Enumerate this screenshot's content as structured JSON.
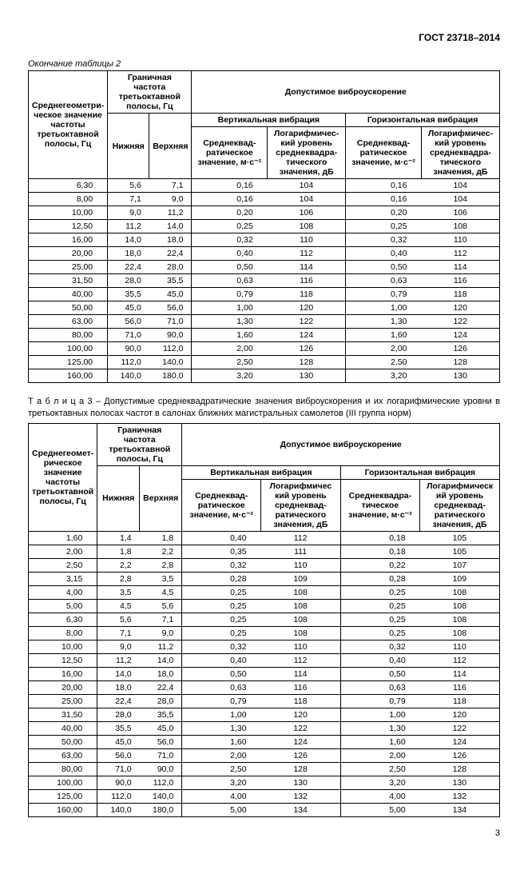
{
  "doc_header": "ГОСТ 23718–2014",
  "table2": {
    "caption": "Окончание таблицы 2",
    "headers": {
      "col_freq": "Среднегеометри-\nческое значение частоты третьоктавной полосы, Гц",
      "col_bound": "Граничная частота третьоктавной полосы, Гц",
      "col_lower": "Нижняя",
      "col_upper": "Верхняя",
      "col_accel": "Допустимое виброускорение",
      "col_vert": "Вертикальная вибрация",
      "col_horiz": "Горизонтальная вибрация",
      "col_rms": "Среднеквад-\nратическое значение, м·с⁻²",
      "col_log": "Логарифмичес-\nкий уровень среднеквадра-\nтического значения, дБ"
    },
    "rows": [
      {
        "f": "6,30",
        "lo": "5,6",
        "hi": "7,1",
        "v_rms": "0,16",
        "v_db": "104",
        "h_rms": "0,16",
        "h_db": "104"
      },
      {
        "f": "8,00",
        "lo": "7,1",
        "hi": "9,0",
        "v_rms": "0,16",
        "v_db": "104",
        "h_rms": "0,16",
        "h_db": "104"
      },
      {
        "f": "10,00",
        "lo": "9,0",
        "hi": "11,2",
        "v_rms": "0,20",
        "v_db": "106",
        "h_rms": "0,20",
        "h_db": "106"
      },
      {
        "f": "12,50",
        "lo": "11,2",
        "hi": "14,0",
        "v_rms": "0,25",
        "v_db": "108",
        "h_rms": "0,25",
        "h_db": "108"
      },
      {
        "f": "16,00",
        "lo": "14,0",
        "hi": "18,0",
        "v_rms": "0,32",
        "v_db": "110",
        "h_rms": "0,32",
        "h_db": "110"
      },
      {
        "f": "20,00",
        "lo": "18,0",
        "hi": "22,4",
        "v_rms": "0,40",
        "v_db": "112",
        "h_rms": "0,40",
        "h_db": "112"
      },
      {
        "f": "25,00",
        "lo": "22,4",
        "hi": "28,0",
        "v_rms": "0,50",
        "v_db": "114",
        "h_rms": "0,50",
        "h_db": "114"
      },
      {
        "f": "31,50",
        "lo": "28,0",
        "hi": "35,5",
        "v_rms": "0,63",
        "v_db": "116",
        "h_rms": "0,63",
        "h_db": "116"
      },
      {
        "f": "40,00",
        "lo": "35,5",
        "hi": "45,0",
        "v_rms": "0,79",
        "v_db": "118",
        "h_rms": "0,79",
        "h_db": "118"
      },
      {
        "f": "50,00",
        "lo": "45,0",
        "hi": "56,0",
        "v_rms": "1,00",
        "v_db": "120",
        "h_rms": "1,00",
        "h_db": "120"
      },
      {
        "f": "63,00",
        "lo": "56,0",
        "hi": "71,0",
        "v_rms": "1,30",
        "v_db": "122",
        "h_rms": "1,30",
        "h_db": "122"
      },
      {
        "f": "80,00",
        "lo": "71,0",
        "hi": "90,0",
        "v_rms": "1,60",
        "v_db": "124",
        "h_rms": "1,60",
        "h_db": "124"
      },
      {
        "f": "100,00",
        "lo": "90,0",
        "hi": "112,0",
        "v_rms": "2,00",
        "v_db": "126",
        "h_rms": "2,00",
        "h_db": "126"
      },
      {
        "f": "125,00",
        "lo": "112,0",
        "hi": "140,0",
        "v_rms": "2,50",
        "v_db": "128",
        "h_rms": "2,50",
        "h_db": "128"
      },
      {
        "f": "160,00",
        "lo": "140,0",
        "hi": "180,0",
        "v_rms": "3,20",
        "v_db": "130",
        "h_rms": "3,20",
        "h_db": "130"
      }
    ]
  },
  "between_caption": "Т а б л и ц а  3  –  Допустимые среднеквадратические значения виброускорения и их логарифмические уровни в третьоктавных полосах частот в салонах ближних магистральных самолетов (III группа норм)",
  "table3": {
    "headers": {
      "col_freq": "Среднегеомет-\nрическое значение частоты третьоктавной полосы, Гц",
      "col_bound": "Граничная частота третьоктавной полосы, Гц",
      "col_lower": "Нижняя",
      "col_upper": "Верхняя",
      "col_accel": "Допустимое виброускорение",
      "col_vert": "Вертикальная вибрация",
      "col_horiz": "Горизонтальная вибрация",
      "col_rms": "Среднеквад-\nратическое значение, м·с⁻²",
      "col_log_v": "Логарифмичес\nкий уровень среднеквад-\nратического значения, дБ",
      "col_rms_h": "Среднеквадра-\nтическое значение, м·с⁻²",
      "col_log_h": "Логарифмическ\nий уровень среднеквад-\nратического значения, дБ"
    },
    "rows": [
      {
        "f": "1,60",
        "lo": "1,4",
        "hi": "1,8",
        "v_rms": "0,40",
        "v_db": "112",
        "h_rms": "0,18",
        "h_db": "105"
      },
      {
        "f": "2,00",
        "lo": "1,8",
        "hi": "2,2",
        "v_rms": "0,35",
        "v_db": "111",
        "h_rms": "0,18",
        "h_db": "105"
      },
      {
        "f": "2,50",
        "lo": "2,2",
        "hi": "2,8",
        "v_rms": "0,32",
        "v_db": "110",
        "h_rms": "0,22",
        "h_db": "107"
      },
      {
        "f": "3,15",
        "lo": "2,8",
        "hi": "3,5",
        "v_rms": "0,28",
        "v_db": "109",
        "h_rms": "0,28",
        "h_db": "109"
      },
      {
        "f": "4,00",
        "lo": "3,5",
        "hi": "4,5",
        "v_rms": "0,25",
        "v_db": "108",
        "h_rms": "0,25",
        "h_db": "108"
      },
      {
        "f": "5,00",
        "lo": "4,5",
        "hi": "5,6",
        "v_rms": "0,25",
        "v_db": "108",
        "h_rms": "0,25",
        "h_db": "108"
      },
      {
        "f": "6,30",
        "lo": "5,6",
        "hi": "7,1",
        "v_rms": "0,25",
        "v_db": "108",
        "h_rms": "0,25",
        "h_db": "108"
      },
      {
        "f": "8,00",
        "lo": "7,1",
        "hi": "9,0",
        "v_rms": "0,25",
        "v_db": "108",
        "h_rms": "0,25",
        "h_db": "108"
      },
      {
        "f": "10,00",
        "lo": "9,0",
        "hi": "11,2",
        "v_rms": "0,32",
        "v_db": "110",
        "h_rms": "0,32",
        "h_db": "110"
      },
      {
        "f": "12,50",
        "lo": "11,2",
        "hi": "14,0",
        "v_rms": "0,40",
        "v_db": "112",
        "h_rms": "0,40",
        "h_db": "112"
      },
      {
        "f": "16,00",
        "lo": "14,0",
        "hi": "18,0",
        "v_rms": "0,50",
        "v_db": "114",
        "h_rms": "0,50",
        "h_db": "114"
      },
      {
        "f": "20,00",
        "lo": "18,0",
        "hi": "22,4",
        "v_rms": "0,63",
        "v_db": "116",
        "h_rms": "0,63",
        "h_db": "116"
      },
      {
        "f": "25,00",
        "lo": "22,4",
        "hi": "28,0",
        "v_rms": "0,79",
        "v_db": "118",
        "h_rms": "0,79",
        "h_db": "118"
      },
      {
        "f": "31,50",
        "lo": "28,0",
        "hi": "35,5",
        "v_rms": "1,00",
        "v_db": "120",
        "h_rms": "1,00",
        "h_db": "120"
      },
      {
        "f": "40,00",
        "lo": "35,5",
        "hi": "45,0",
        "v_rms": "1,30",
        "v_db": "122",
        "h_rms": "1,30",
        "h_db": "122"
      },
      {
        "f": "50,00",
        "lo": "45,0",
        "hi": "56,0",
        "v_rms": "1,60",
        "v_db": "124",
        "h_rms": "1,60",
        "h_db": "124"
      },
      {
        "f": "63,00",
        "lo": "56,0",
        "hi": "71,0",
        "v_rms": "2,00",
        "v_db": "126",
        "h_rms": "2,00",
        "h_db": "126"
      },
      {
        "f": "80,00",
        "lo": "71,0",
        "hi": "90,0",
        "v_rms": "2,50",
        "v_db": "128",
        "h_rms": "2,50",
        "h_db": "128"
      },
      {
        "f": "100,00",
        "lo": "90,0",
        "hi": "112,0",
        "v_rms": "3,20",
        "v_db": "130",
        "h_rms": "3,20",
        "h_db": "130"
      },
      {
        "f": "125,00",
        "lo": "112,0",
        "hi": "140,0",
        "v_rms": "4,00",
        "v_db": "132",
        "h_rms": "4,00",
        "h_db": "132"
      },
      {
        "f": "160,00",
        "lo": "140,0",
        "hi": "180,0",
        "v_rms": "5,00",
        "v_db": "134",
        "h_rms": "5,00",
        "h_db": "134"
      }
    ]
  },
  "page_number": "3"
}
